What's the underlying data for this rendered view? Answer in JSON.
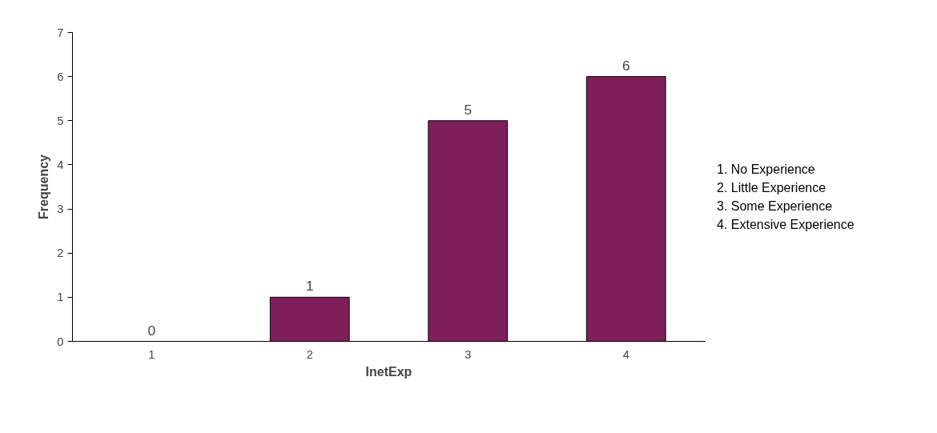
{
  "chart_data": {
    "type": "bar",
    "xlabel": "InetExp",
    "ylabel": "Frequency",
    "categories": [
      "1",
      "2",
      "3",
      "4"
    ],
    "values": [
      0,
      1,
      5,
      6
    ],
    "color": "#7f1f5a",
    "ylim": [
      0,
      7
    ],
    "yticks": [
      0,
      1,
      2,
      3,
      4,
      5,
      6,
      7
    ],
    "grid": false,
    "data_labels": true,
    "annotations": [
      "1. No Experience",
      "2. Little Experience",
      "3. Some Experience",
      "4. Extensive Experience"
    ]
  }
}
